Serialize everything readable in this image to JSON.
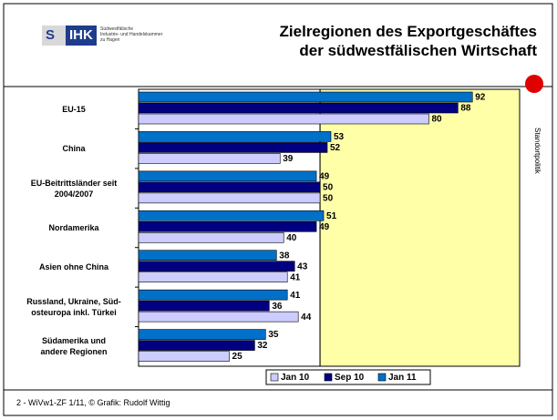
{
  "logo": {
    "mark": "S",
    "name": "IHK",
    "text": "Südwestfälische\nIndustrie- und Handelskammer\nzu Hagen"
  },
  "side_label": "Standortpolitik",
  "footer": "2 - WiVw1-ZF 1/11, © Grafik: Rudolf Wittig",
  "chart_data": {
    "type": "hbar",
    "title": "Zielregionen des Exportgeschäftes\nder südwestfälischen Wirtschaft",
    "categories": [
      "EU-15",
      "China",
      "EU-Beitrittsländer seit\n2004/2007",
      "Nordamerika",
      "Asien ohne China",
      "Russland, Ukraine, Süd-\nosteuropa inkl. Türkei",
      "Südamerika und\nandere Regionen"
    ],
    "series": [
      {
        "name": "Jan 10",
        "color": "#ccccff",
        "values": [
          80,
          39,
          50,
          40,
          41,
          44,
          25
        ]
      },
      {
        "name": "Sep 10",
        "color": "#000080",
        "values": [
          88,
          52,
          50,
          49,
          43,
          36,
          32
        ]
      },
      {
        "name": "Jan 11",
        "color": "#0070c8",
        "values": [
          92,
          53,
          49,
          51,
          38,
          41,
          35
        ]
      }
    ],
    "xlim": [
      0,
      105
    ],
    "highlight_from": 50,
    "highlight_color": "#ffffa8",
    "legend": "bottom"
  }
}
